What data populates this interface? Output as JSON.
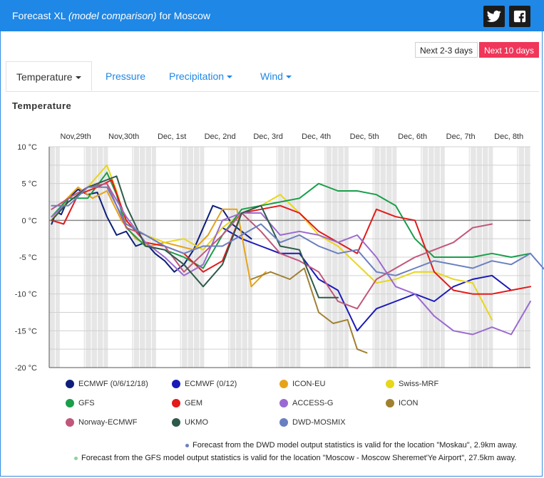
{
  "header": {
    "title_prefix": "Forecast XL ",
    "title_italic": "(model comparison)",
    "title_suffix": " for Moscow",
    "bg": "#1f87e5",
    "twitter_icon": "twitter-icon",
    "facebook_icon": "facebook-icon"
  },
  "range_buttons": {
    "next23": "Next 2-3 days",
    "next10": "Next 10 days",
    "active_color": "#f0365a"
  },
  "tabs": {
    "temperature": "Temperature",
    "pressure": "Pressure",
    "precipitation": "Precipitation",
    "wind": "Wind"
  },
  "section_title": "Temperature",
  "notes": {
    "dwd": "Forecast from the DWD model output statistics is valid for the location \"Moskau\", 2.9km away.",
    "gfs": "Forecast from the GFS model output statistics is valid for the location \"Moscow - Moscow Sheremet'Ye Airport\", 27.5km away.",
    "dwd_color": "#6a7fc0",
    "gfs_color": "#8fd19e"
  },
  "chart_data": {
    "type": "line",
    "title": "Temperature",
    "x_ticks": [
      "Nov,29th",
      "Nov,30th",
      "Dec, 1st",
      "Dec, 2nd",
      "Dec, 3rd",
      "Dec, 4th",
      "Dec, 5th",
      "Dec, 6th",
      "Dec, 7th",
      "Dec, 8th"
    ],
    "y_ticks": [
      "10 °C",
      "5 °C",
      "0 °C",
      "-5 °C",
      "-10 °C",
      "-15 °C",
      "-20 °C"
    ],
    "ylim": [
      -20,
      10
    ],
    "xlim": [
      0,
      10
    ],
    "series": [
      {
        "name": "ECMWF (0/6/12/18)",
        "color": "#0d1f7a",
        "x": [
          0.05,
          0.15,
          0.25,
          0.4,
          0.6,
          0.8,
          1.0,
          1.2,
          1.4,
          1.6,
          1.8,
          2.0,
          2.2,
          2.4,
          2.6,
          2.8,
          3.0,
          3.2,
          3.4,
          3.6,
          3.8,
          4.0,
          4.2
        ],
        "y": [
          -0.5,
          1.2,
          0.8,
          3.0,
          4.2,
          3.5,
          3.8,
          0.5,
          -2.0,
          -1.5,
          -3.5,
          -3.0,
          -4.5,
          -5.5,
          -7.0,
          -6.0,
          -4.0,
          -1.0,
          2.0,
          1.5,
          -0.5,
          -1.5,
          -2.5
        ]
      },
      {
        "name": "ECMWF (0/12)",
        "color": "#1a1ab8",
        "x": [
          3.6,
          4.0,
          4.4,
          4.8,
          5.2,
          5.6,
          6.0,
          6.4,
          6.8,
          7.2,
          7.6,
          8.0,
          8.4,
          8.8,
          9.2,
          9.6
        ],
        "y": [
          -1.0,
          -2.5,
          -3.5,
          -4.5,
          -4.5,
          -8.0,
          -9.5,
          -15.0,
          -12.0,
          -11.0,
          -10.0,
          -11.0,
          -9.0,
          -8.0,
          -7.5,
          -9.5
        ]
      },
      {
        "name": "ICON-EU",
        "color": "#e6a31a",
        "x": [
          0.05,
          0.3,
          0.6,
          0.9,
          1.2,
          1.5,
          1.8,
          2.1,
          2.4,
          2.7,
          3.0,
          3.3,
          3.6,
          3.9,
          4.2,
          4.5
        ],
        "y": [
          0.0,
          2.5,
          4.5,
          3.0,
          4.0,
          0.0,
          -2.5,
          -3.5,
          -3.0,
          -3.5,
          -4.0,
          -2.0,
          1.5,
          1.5,
          -9.0,
          -7.0
        ]
      },
      {
        "name": "Swiss-MRF",
        "color": "#e8d61a",
        "x": [
          0.05,
          0.4,
          0.8,
          1.2,
          1.4,
          1.6,
          2.0,
          2.4,
          2.8,
          3.2,
          3.6,
          4.0,
          4.4,
          4.8,
          5.2,
          5.6,
          6.0,
          6.4,
          6.8,
          7.2,
          7.6,
          8.0,
          8.4,
          8.8,
          9.2
        ],
        "y": [
          0.0,
          3.0,
          4.5,
          7.5,
          4.0,
          -0.5,
          -2.0,
          -3.0,
          -2.5,
          -4.0,
          -1.0,
          1.0,
          2.0,
          3.5,
          1.0,
          -2.0,
          -3.5,
          -6.0,
          -8.5,
          -8.0,
          -7.0,
          -7.0,
          -8.0,
          -8.5,
          -13.5
        ]
      },
      {
        "name": "GFS",
        "color": "#1a9e4a",
        "x": [
          0.05,
          0.4,
          0.8,
          1.2,
          1.4,
          1.6,
          2.0,
          2.4,
          2.8,
          3.2,
          3.6,
          4.0,
          4.4,
          4.8,
          5.2,
          5.6,
          6.0,
          6.4,
          6.8,
          7.2,
          7.6,
          8.0,
          8.4,
          8.8,
          9.2,
          9.6,
          10.0
        ],
        "y": [
          0.5,
          3.0,
          3.0,
          6.5,
          3.5,
          -1.0,
          -3.5,
          -4.0,
          -5.0,
          -6.5,
          -2.0,
          1.5,
          2.0,
          2.5,
          3.0,
          5.0,
          4.0,
          4.0,
          3.5,
          2.0,
          -2.5,
          -5.0,
          -5.0,
          -5.0,
          -4.5,
          -5.0,
          -4.5
        ]
      },
      {
        "name": "GEM",
        "color": "#e31a1a",
        "x": [
          0.05,
          0.3,
          0.6,
          1.0,
          1.3,
          1.6,
          2.0,
          2.4,
          2.8,
          3.2,
          3.6,
          4.0,
          4.4,
          4.8,
          5.2,
          5.6,
          6.0,
          6.4,
          6.8,
          7.2,
          7.6,
          8.0,
          8.4,
          8.8,
          9.2,
          9.6,
          10.0
        ],
        "y": [
          0.0,
          -0.5,
          3.5,
          4.5,
          5.5,
          0.0,
          -3.0,
          -3.5,
          -4.5,
          -7.0,
          -5.5,
          1.0,
          1.5,
          2.0,
          1.0,
          -1.5,
          -3.0,
          -4.5,
          1.5,
          0.5,
          0.0,
          -7.0,
          -9.5,
          -10.0,
          -10.0,
          -9.5,
          -9.0
        ]
      },
      {
        "name": "ACCESS-G",
        "color": "#9b6ad0",
        "x": [
          0.05,
          0.4,
          0.8,
          1.2,
          1.6,
          2.0,
          2.4,
          2.8,
          3.2,
          3.6,
          4.0,
          4.4,
          4.8,
          5.2,
          5.6,
          6.0,
          6.4,
          6.8,
          7.2,
          7.6,
          8.0,
          8.4,
          8.8,
          9.2,
          9.6,
          10.0
        ],
        "y": [
          0.5,
          2.5,
          4.5,
          5.0,
          0.5,
          -3.0,
          -5.0,
          -7.5,
          -6.0,
          0.0,
          1.0,
          1.0,
          -2.0,
          -1.5,
          -2.0,
          -3.0,
          -2.0,
          -5.0,
          -9.0,
          -10.0,
          -13.0,
          -15.0,
          -15.5,
          -14.5,
          -15.5,
          -11.0
        ]
      },
      {
        "name": "ICON",
        "color": "#a08030",
        "x": [
          4.2,
          4.6,
          5.0,
          5.3,
          5.6,
          5.9,
          6.2,
          6.4,
          6.6
        ],
        "y": [
          -8.0,
          -7.0,
          -8.0,
          -6.5,
          -12.5,
          -14.0,
          -13.5,
          -17.5,
          -18.0
        ]
      },
      {
        "name": "Norway-ECMWF",
        "color": "#c0577a",
        "x": [
          0.05,
          0.4,
          0.8,
          1.2,
          1.6,
          2.0,
          2.4,
          2.8,
          3.2,
          3.6,
          4.0,
          4.4,
          4.8,
          5.2,
          5.6,
          6.0,
          6.4,
          6.8,
          7.2,
          7.6,
          8.0,
          8.4,
          8.8,
          9.2
        ],
        "y": [
          1.5,
          3.0,
          4.5,
          5.0,
          -1.0,
          -2.0,
          -3.5,
          -7.0,
          -4.5,
          -2.0,
          1.0,
          -1.5,
          -4.5,
          -5.5,
          -7.0,
          -11.0,
          -12.0,
          -8.0,
          -6.5,
          -5.0,
          -4.0,
          -3.0,
          -1.0,
          -0.5
        ]
      },
      {
        "name": "UKMO",
        "color": "#2e5a4a",
        "x": [
          0.05,
          0.4,
          0.8,
          1.2,
          1.4,
          1.6,
          2.0,
          2.4,
          2.8,
          3.2,
          3.6,
          4.0,
          4.4,
          4.8,
          5.2,
          5.6,
          6.0
        ],
        "y": [
          0.0,
          2.5,
          4.5,
          5.5,
          6.0,
          2.0,
          -3.5,
          -4.0,
          -6.0,
          -9.0,
          -6.0,
          1.0,
          2.0,
          -3.5,
          -4.0,
          -10.5,
          -10.5
        ]
      },
      {
        "name": "DWD-MOSMIX",
        "color": "#6a7fc0",
        "x": [
          0.05,
          0.4,
          0.8,
          1.2,
          1.6,
          2.0,
          2.4,
          2.8,
          3.2,
          3.6,
          4.0,
          4.4,
          4.8,
          5.2,
          5.6,
          6.0,
          6.4,
          6.8,
          7.2,
          7.6,
          8.0,
          8.4,
          8.8,
          9.2,
          9.6,
          10.0,
          10.4
        ],
        "y": [
          2.0,
          2.0,
          4.5,
          4.5,
          -0.5,
          -2.0,
          -3.5,
          -4.5,
          -3.5,
          -3.5,
          -2.0,
          -0.5,
          -3.0,
          -2.0,
          -3.5,
          -4.5,
          -4.0,
          -7.0,
          -7.5,
          -6.5,
          -5.5,
          -6.0,
          -6.5,
          -5.5,
          -6.0,
          -4.5,
          -7.5
        ]
      }
    ]
  }
}
